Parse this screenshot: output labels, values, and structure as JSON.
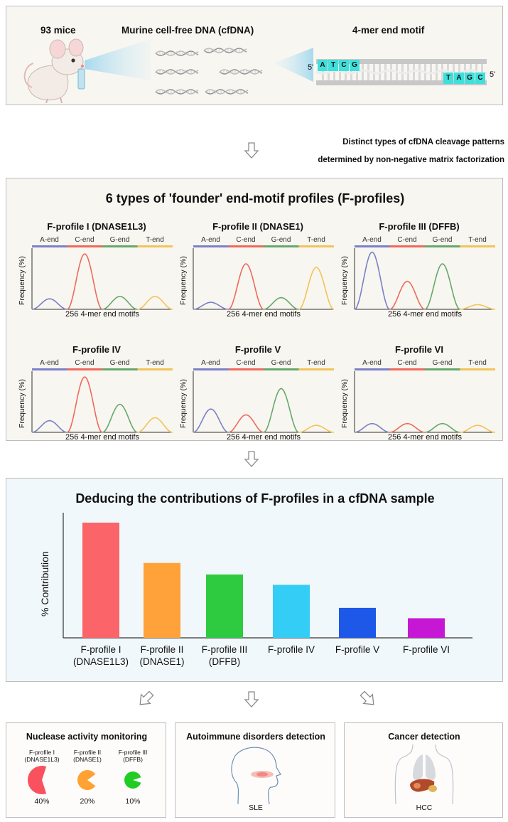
{
  "top": {
    "mice_label": "93 mice",
    "cfdna_label": "Murine cell-free DNA (cfDNA)",
    "motif_label": "4-mer end motif",
    "five_prime_left": "5'",
    "five_prime_right": "5'",
    "motif_left": [
      "A",
      "T",
      "C",
      "G"
    ],
    "motif_right": [
      "T",
      "A",
      "G",
      "C"
    ]
  },
  "step1": {
    "line1": "Distinct types of cfDNA cleavage patterns",
    "line2": "determined by non-negative matrix factorization"
  },
  "profiles_panel": {
    "title": "6 types of 'founder' end-motif profiles (F-profiles)",
    "ylabel": "Frequency (%)",
    "xlabel": "256 4-mer end motifs",
    "segments": [
      "A-end",
      "C-end",
      "G-end",
      "T-end"
    ],
    "segment_colors": [
      "#7a80c8",
      "#ee6a5c",
      "#66a86c",
      "#f2c45a"
    ],
    "profiles": [
      {
        "title": "F-profile I (DNASE1L3)",
        "peaks": [
          0.18,
          0.95,
          0.22,
          0.22
        ]
      },
      {
        "title": "F-profile II (DNASE1)",
        "peaks": [
          0.12,
          0.78,
          0.2,
          0.72
        ]
      },
      {
        "title": "F-profile III (DFFB)",
        "peaks": [
          0.98,
          0.48,
          0.78,
          0.08
        ]
      },
      {
        "title": "F-profile IV",
        "peaks": [
          0.2,
          0.95,
          0.48,
          0.25
        ]
      },
      {
        "title": "F-profile V",
        "peaks": [
          0.4,
          0.3,
          0.75,
          0.12
        ]
      },
      {
        "title": "F-profile VI",
        "peaks": [
          0.15,
          0.15,
          0.15,
          0.12
        ]
      }
    ]
  },
  "chart_data": {
    "type": "bar",
    "title": "Deducing the contributions of F-profiles in a cfDNA sample",
    "ylabel": "% Contribution",
    "categories": [
      [
        "F-profile I",
        "(DNASE1L3)"
      ],
      [
        "F-profile II",
        "(DNASE1)"
      ],
      [
        "F-profile III",
        "(DFFB)"
      ],
      [
        "F-profile IV"
      ],
      [
        "F-profile V"
      ],
      [
        "F-profile VI"
      ]
    ],
    "values": [
      100,
      65,
      55,
      46,
      26,
      17
    ],
    "colors": [
      "#fb6468",
      "#ffa23a",
      "#2ecb40",
      "#34cdf6",
      "#1d58e8",
      "#c618d4"
    ],
    "ylim": [
      0,
      100
    ]
  },
  "applications": {
    "nuclease": {
      "title": "Nuclease activity monitoring",
      "items": [
        {
          "name": "F-profile I",
          "sub": "(DNASE1L3)",
          "pct": "40%",
          "fraction": 0.4,
          "color": "#f9525e"
        },
        {
          "name": "F-profile II",
          "sub": "(DNASE1)",
          "pct": "20%",
          "fraction": 0.2,
          "color": "#ffa233"
        },
        {
          "name": "F-profile III",
          "sub": "(DFFB)",
          "pct": "10%",
          "fraction": 0.1,
          "color": "#22cc22"
        }
      ]
    },
    "autoimmune": {
      "title": "Autoimmune disorders detection",
      "label": "SLE"
    },
    "cancer": {
      "title": "Cancer detection",
      "label": "HCC"
    }
  }
}
